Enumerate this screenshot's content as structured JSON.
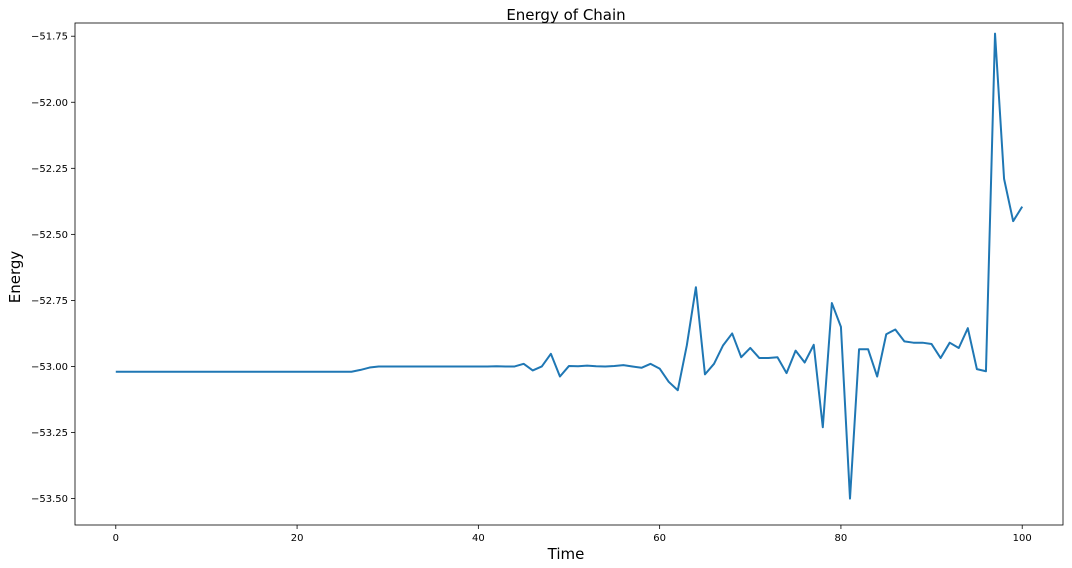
{
  "chart_data": {
    "type": "line",
    "title": "Energy of Chain",
    "xlabel": "Time",
    "ylabel": "Energy",
    "xlim": [
      -4.5,
      104.5
    ],
    "ylim": [
      -53.6,
      -51.7
    ],
    "x_ticks": [
      0,
      20,
      40,
      60,
      80,
      100
    ],
    "x_tick_labels": [
      "0",
      "20",
      "40",
      "60",
      "80",
      "100"
    ],
    "y_ticks": [
      -51.75,
      -52.0,
      -52.25,
      -52.5,
      -52.75,
      -53.0,
      -53.25,
      -53.5
    ],
    "y_tick_labels": [
      "−51.75",
      "−52.00",
      "−52.25",
      "−52.50",
      "−52.75",
      "−53.00",
      "−53.25",
      "−53.50"
    ],
    "grid": false,
    "series": [
      {
        "color": "#1f77b4",
        "x": [
          0,
          1,
          2,
          3,
          4,
          5,
          6,
          7,
          8,
          9,
          10,
          11,
          12,
          13,
          14,
          15,
          16,
          17,
          18,
          19,
          20,
          21,
          22,
          23,
          24,
          25,
          26,
          27,
          28,
          29,
          30,
          31,
          32,
          33,
          34,
          35,
          36,
          37,
          38,
          39,
          40,
          41,
          42,
          43,
          44,
          45,
          46,
          47,
          48,
          49,
          50,
          51,
          52,
          53,
          54,
          55,
          56,
          57,
          58,
          59,
          60,
          61,
          62,
          63,
          64,
          65,
          66,
          67,
          68,
          69,
          70,
          71,
          72,
          73,
          74,
          75,
          76,
          77,
          78,
          79,
          80,
          81,
          82,
          83,
          84,
          85,
          86,
          87,
          88,
          89,
          90,
          91,
          92,
          93,
          94,
          95,
          96,
          97,
          98,
          99,
          100
        ],
        "values": [
          -53.02,
          -53.02,
          -53.02,
          -53.02,
          -53.02,
          -53.02,
          -53.02,
          -53.02,
          -53.02,
          -53.02,
          -53.02,
          -53.02,
          -53.02,
          -53.02,
          -53.02,
          -53.02,
          -53.02,
          -53.02,
          -53.02,
          -53.02,
          -53.02,
          -53.02,
          -53.02,
          -53.02,
          -53.02,
          -53.02,
          -53.02,
          -53.013,
          -53.004,
          -53.0,
          -53.0,
          -53.0,
          -53.0,
          -53.0,
          -53.0,
          -53.0,
          -53.0,
          -53.0,
          -53.0,
          -53.0,
          -53.0,
          -53.0,
          -52.999,
          -53.0,
          -53.0,
          -52.99,
          -53.015,
          -53.0,
          -52.952,
          -53.038,
          -52.998,
          -52.999,
          -52.997,
          -52.999,
          -53.0,
          -52.998,
          -52.995,
          -53.0,
          -53.005,
          -52.99,
          -53.008,
          -53.058,
          -53.09,
          -52.92,
          -52.7,
          -53.03,
          -52.99,
          -52.92,
          -52.875,
          -52.965,
          -52.93,
          -52.968,
          -52.968,
          -52.965,
          -53.025,
          -52.94,
          -52.985,
          -52.918,
          -53.23,
          -52.76,
          -52.85,
          -53.5,
          -52.935,
          -52.935,
          -53.038,
          -52.878,
          -52.86,
          -52.905,
          -52.91,
          -52.91,
          -52.915,
          -52.968,
          -52.91,
          -52.93,
          -52.855,
          -53.01,
          -53.018,
          -51.74,
          -52.29,
          -52.45,
          -52.395
        ]
      }
    ]
  }
}
